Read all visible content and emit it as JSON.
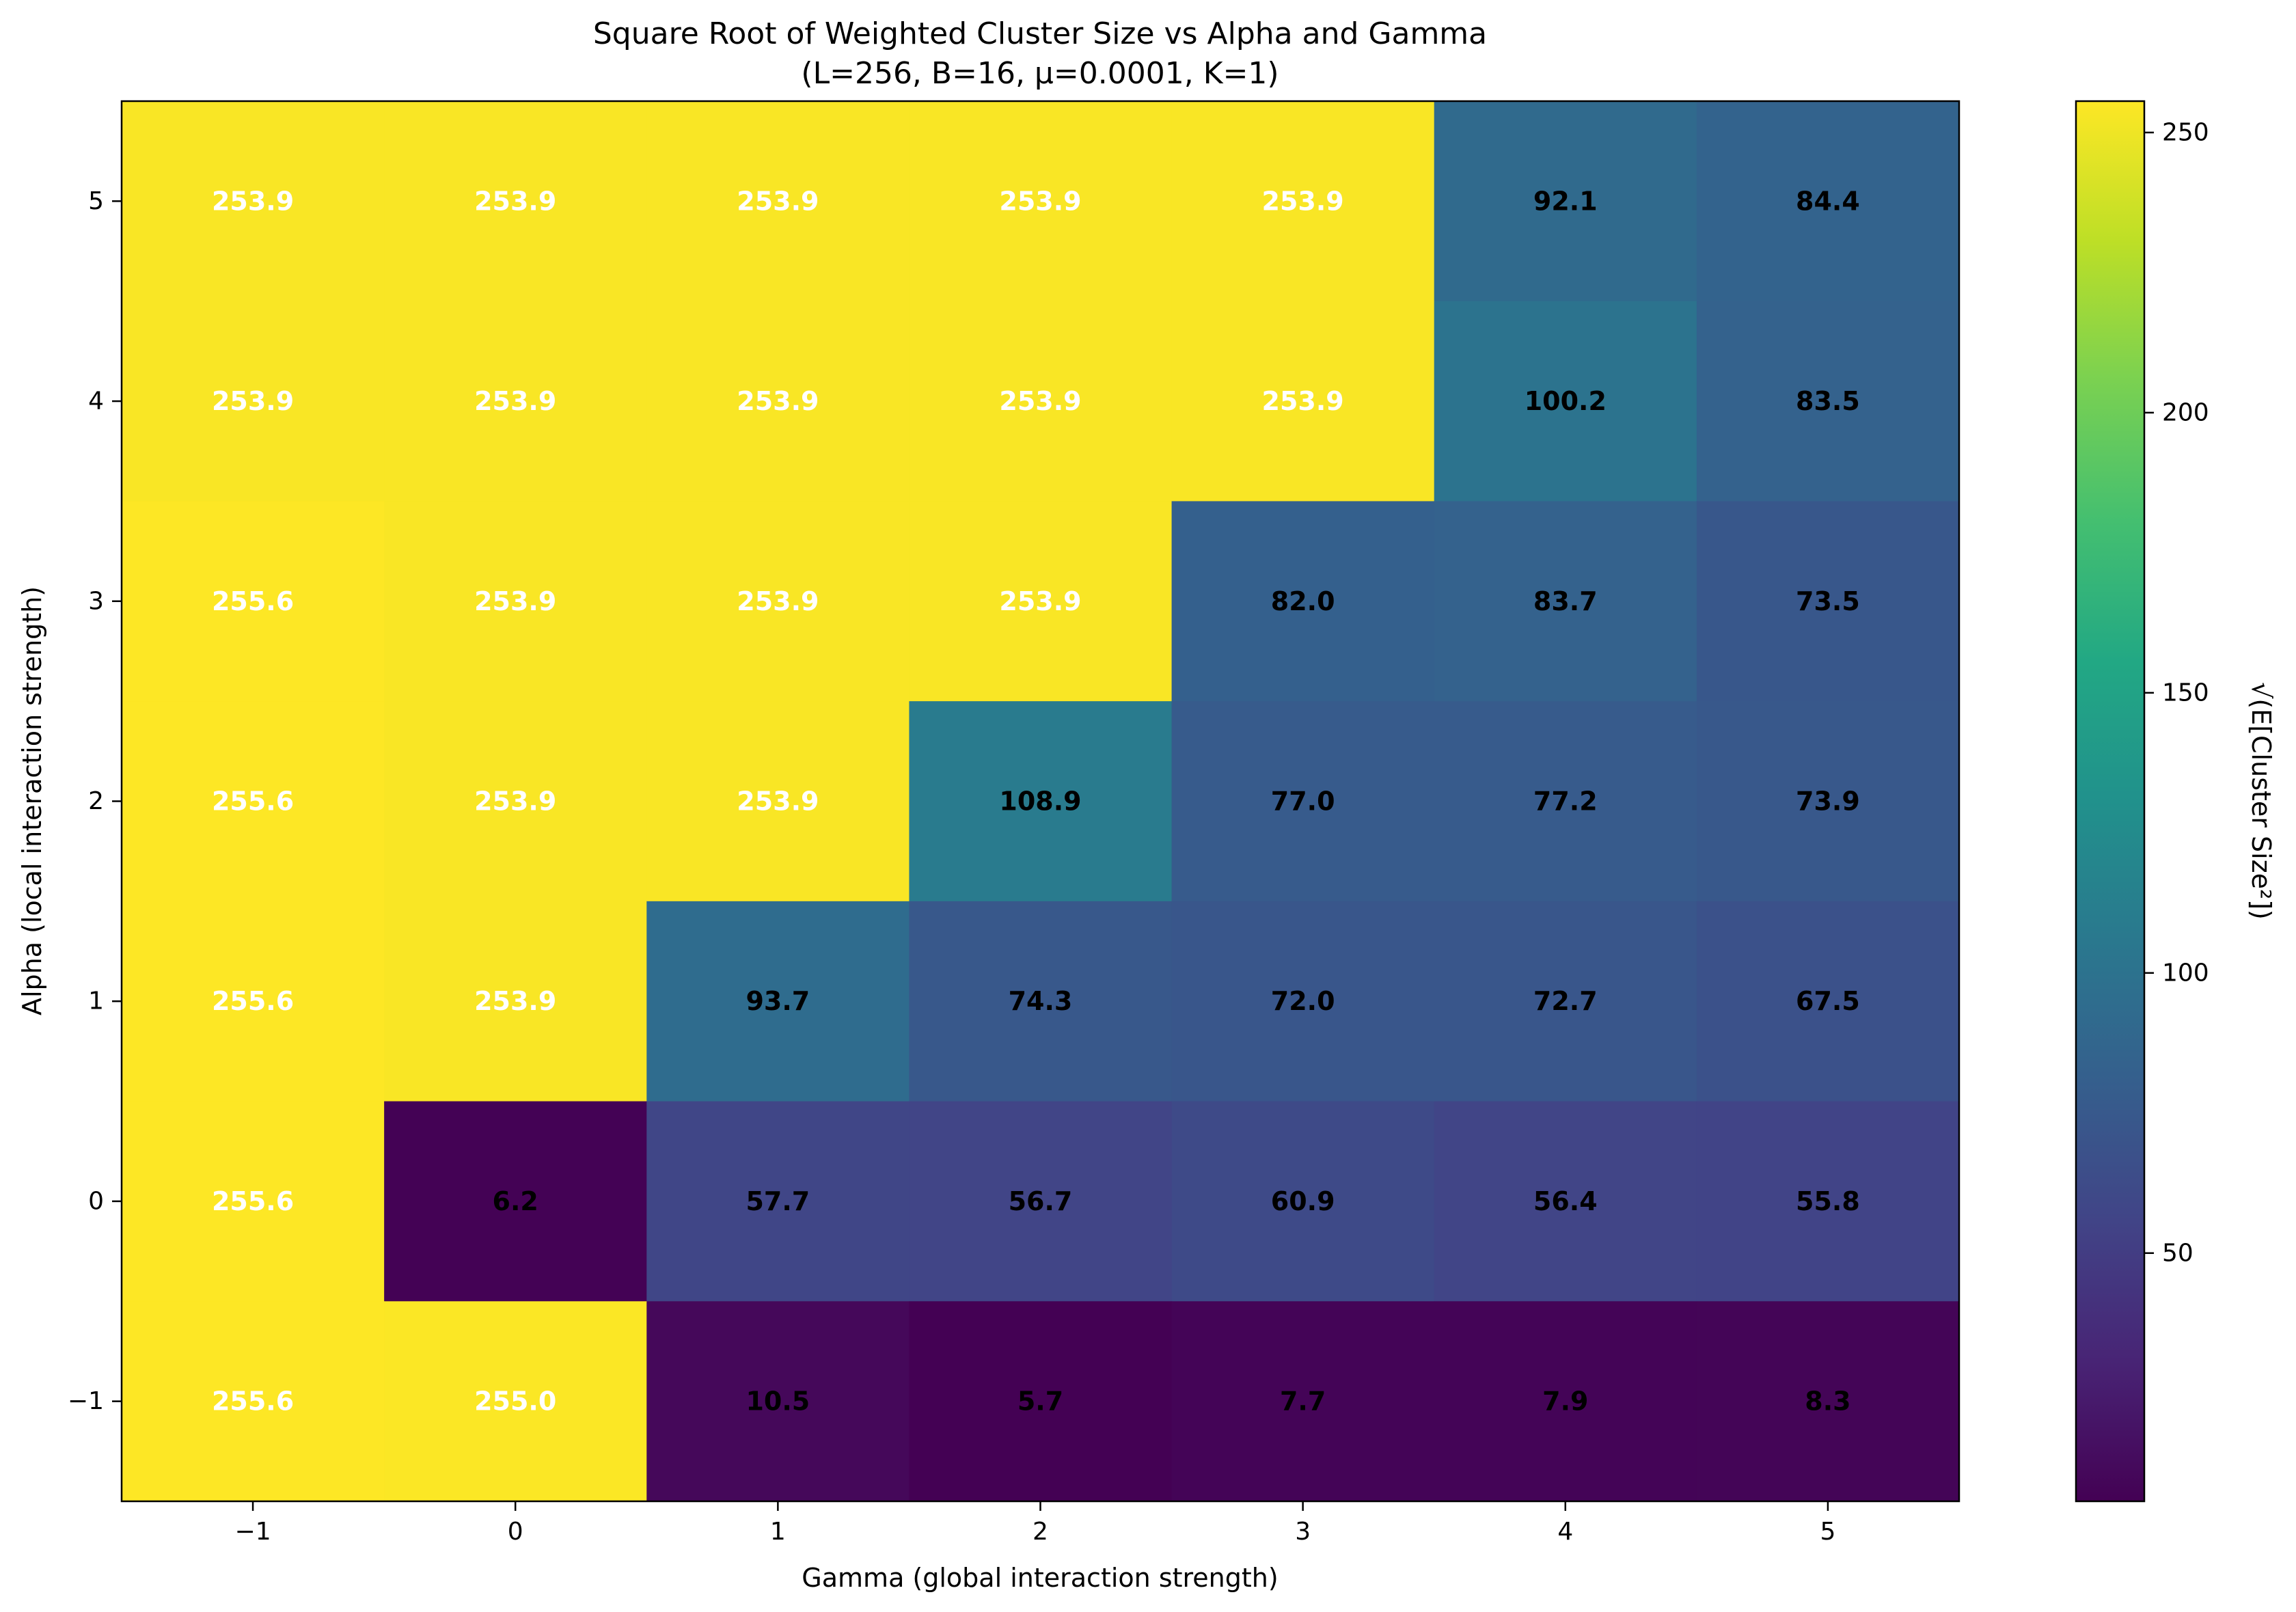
{
  "chart_data": {
    "type": "heatmap",
    "title": "Square Root of Weighted Cluster Size vs Alpha and Gamma",
    "subtitle": "(L=256, B=16, μ=0.0001, K=1)",
    "xlabel": "Gamma (global interaction strength)",
    "ylabel": "Alpha (local interaction strength)",
    "colorbar_label": "√(E[Cluster Size²])",
    "colormap": "viridis",
    "vmin": 5.7,
    "vmax": 255.6,
    "x": [
      -1,
      0,
      1,
      2,
      3,
      4,
      5
    ],
    "y": [
      5,
      4,
      3,
      2,
      1,
      0,
      -1
    ],
    "x_tick_labels": [
      "−1",
      "0",
      "1",
      "2",
      "3",
      "4",
      "5"
    ],
    "y_tick_labels": [
      "5",
      "4",
      "3",
      "2",
      "1",
      "0",
      "−1"
    ],
    "colorbar_ticks": [
      50,
      100,
      150,
      200,
      250
    ],
    "colorbar_tick_labels": [
      "50",
      "100",
      "150",
      "200",
      "250"
    ],
    "values": [
      [
        253.9,
        253.9,
        253.9,
        253.9,
        253.9,
        92.1,
        84.4
      ],
      [
        253.9,
        253.9,
        253.9,
        253.9,
        253.9,
        100.2,
        83.5
      ],
      [
        255.6,
        253.9,
        253.9,
        253.9,
        82.0,
        83.7,
        73.5
      ],
      [
        255.6,
        253.9,
        253.9,
        108.9,
        77.0,
        77.2,
        73.9
      ],
      [
        255.6,
        253.9,
        93.7,
        74.3,
        72.0,
        72.7,
        67.5
      ],
      [
        255.6,
        6.2,
        57.7,
        56.7,
        60.9,
        56.4,
        55.8
      ],
      [
        255.6,
        255.0,
        10.5,
        5.7,
        7.7,
        7.9,
        8.3
      ]
    ],
    "cell_labels": [
      [
        "253.9",
        "253.9",
        "253.9",
        "253.9",
        "253.9",
        "92.1",
        "84.4"
      ],
      [
        "253.9",
        "253.9",
        "253.9",
        "253.9",
        "253.9",
        "100.2",
        "83.5"
      ],
      [
        "255.6",
        "253.9",
        "253.9",
        "253.9",
        "82.0",
        "83.7",
        "73.5"
      ],
      [
        "255.6",
        "253.9",
        "253.9",
        "108.9",
        "77.0",
        "77.2",
        "73.9"
      ],
      [
        "255.6",
        "253.9",
        "93.7",
        "74.3",
        "72.0",
        "72.7",
        "67.5"
      ],
      [
        "255.6",
        "6.2",
        "57.7",
        "56.7",
        "60.9",
        "56.4",
        "55.8"
      ],
      [
        "255.6",
        "255.0",
        "10.5",
        "5.7",
        "7.7",
        "7.9",
        "8.3"
      ]
    ],
    "label_colors": {
      "high": "#ffffff",
      "low": "#000000"
    },
    "grid": false
  }
}
